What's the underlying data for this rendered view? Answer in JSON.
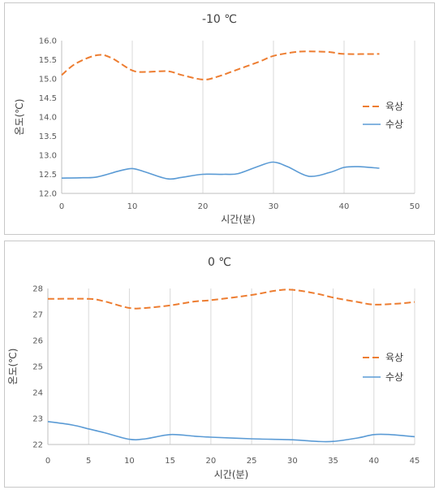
{
  "chart_data": [
    {
      "type": "line",
      "title": "-10 ℃",
      "xlabel": "시간(분)",
      "ylabel": "온도(℃)",
      "xlim": [
        0,
        50
      ],
      "ylim": [
        12.0,
        16.0
      ],
      "x_ticks": [
        "0",
        "10",
        "20",
        "30",
        "40",
        "50"
      ],
      "y_ticks": [
        "12.0",
        "12.5",
        "13.0",
        "13.5",
        "14.0",
        "14.5",
        "15.0",
        "15.5",
        "16.0"
      ],
      "grid": "vertical",
      "legend": "right",
      "series": [
        {
          "name": "육상",
          "color": "#ed7d31",
          "style": "dashed",
          "x": [
            0,
            2,
            5,
            7,
            10,
            12,
            15,
            17,
            20,
            22,
            25,
            28,
            30,
            33,
            35,
            38,
            40,
            45
          ],
          "y": [
            15.1,
            15.4,
            15.62,
            15.55,
            15.22,
            15.18,
            15.2,
            15.1,
            14.98,
            15.05,
            15.25,
            15.45,
            15.6,
            15.7,
            15.72,
            15.7,
            15.65,
            15.65
          ]
        },
        {
          "name": "수상",
          "color": "#5b9bd5",
          "style": "solid",
          "x": [
            0,
            3,
            5,
            8,
            10,
            12,
            15,
            17,
            20,
            23,
            25,
            28,
            30,
            32,
            35,
            38,
            40,
            42,
            45
          ],
          "y": [
            12.4,
            12.41,
            12.43,
            12.58,
            12.65,
            12.55,
            12.38,
            12.42,
            12.5,
            12.5,
            12.52,
            12.72,
            12.82,
            12.7,
            12.45,
            12.55,
            12.68,
            12.7,
            12.66
          ]
        }
      ]
    },
    {
      "type": "line",
      "title": "0 ℃",
      "xlabel": "시간(분)",
      "ylabel": "온도(℃)",
      "xlim": [
        0,
        45
      ],
      "ylim": [
        22,
        28
      ],
      "x_ticks": [
        "0",
        "5",
        "10",
        "15",
        "20",
        "25",
        "30",
        "35",
        "40",
        "45"
      ],
      "y_ticks": [
        "22",
        "23",
        "24",
        "25",
        "26",
        "27",
        "28"
      ],
      "grid": "vertical",
      "legend": "right",
      "series": [
        {
          "name": "육상",
          "color": "#ed7d31",
          "style": "dashed",
          "x": [
            0,
            5,
            7,
            10,
            12,
            15,
            18,
            20,
            25,
            28,
            30,
            33,
            35,
            38,
            40,
            43,
            45
          ],
          "y": [
            27.6,
            27.6,
            27.5,
            27.25,
            27.25,
            27.35,
            27.5,
            27.55,
            27.75,
            27.92,
            27.95,
            27.8,
            27.65,
            27.48,
            27.38,
            27.42,
            27.48
          ]
        },
        {
          "name": "수상",
          "color": "#5b9bd5",
          "style": "solid",
          "x": [
            0,
            3,
            5,
            7,
            10,
            12,
            15,
            18,
            20,
            25,
            30,
            33,
            35,
            38,
            40,
            42,
            45
          ],
          "y": [
            22.88,
            22.75,
            22.6,
            22.45,
            22.2,
            22.22,
            22.38,
            22.32,
            22.28,
            22.22,
            22.18,
            22.12,
            22.12,
            22.25,
            22.38,
            22.38,
            22.3
          ]
        }
      ]
    }
  ]
}
